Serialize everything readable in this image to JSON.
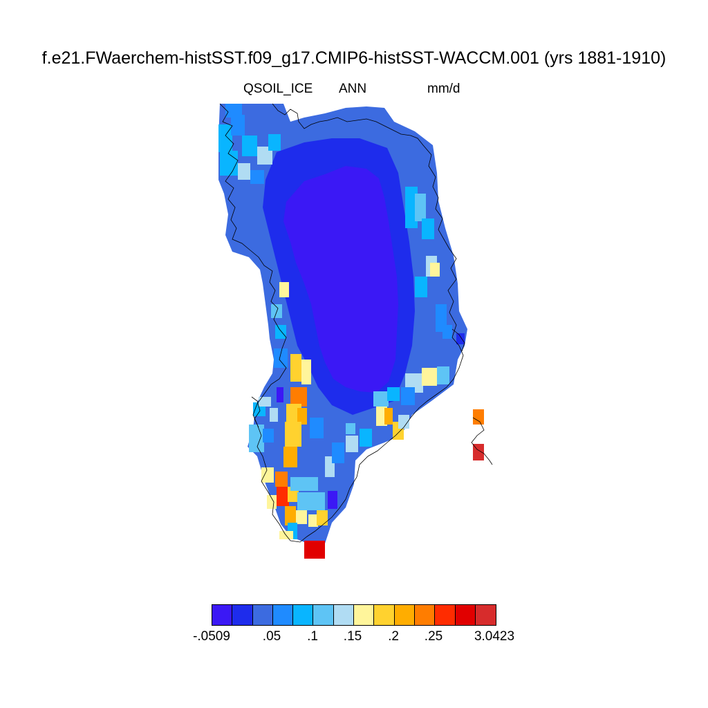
{
  "header": {
    "title": "f.e21.FWaerchem-histSST.f09_g17.CMIP6-histSST-WACCM.001 (yrs 1881-1910)",
    "variable": "QSOIL_ICE",
    "season": "ANN",
    "units": "mm/d"
  },
  "colorbar": {
    "colors": [
      "#3b18f5",
      "#1e2cec",
      "#3c6be0",
      "#1f8bff",
      "#09b5ff",
      "#5ec4f5",
      "#b0dcf3",
      "#fff59b",
      "#ffd22f",
      "#ffad00",
      "#ff7d00",
      "#ff2c00",
      "#e10000",
      "#d72c2c"
    ],
    "labels": [
      "-.0509",
      ".05",
      ".1",
      ".15",
      ".2",
      ".25",
      "3.0423"
    ]
  },
  "chart_data": {
    "type": "heatmap",
    "title": "f.e21.FWaerchem-histSST.f09_g17.CMIP6-histSST-WACCM.001 (yrs 1881-1910)",
    "variable": "QSOIL_ICE",
    "season": "ANN",
    "units": "mm/d",
    "region": "Greenland",
    "colorbar_levels": [
      "-.0509",
      ".05",
      ".1",
      ".15",
      ".2",
      ".25",
      "3.0423"
    ]
  }
}
